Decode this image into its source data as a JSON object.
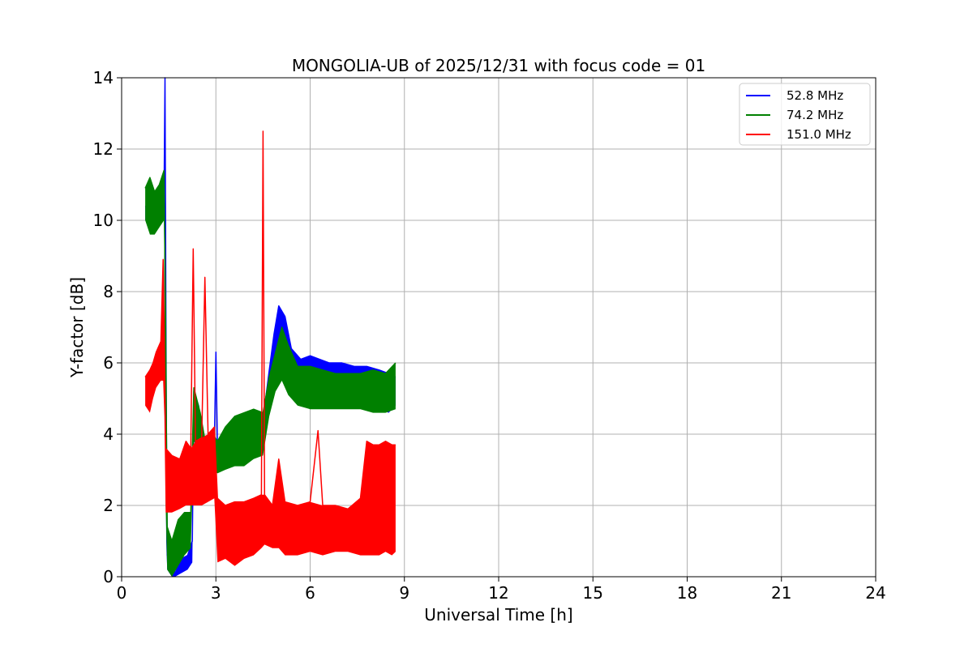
{
  "chart_data": {
    "type": "line",
    "title": "MONGOLIA-UB of 2025/12/31 with focus code = 01",
    "xlabel": "Universal Time [h]",
    "ylabel": "Y-factor [dB]",
    "xlim": [
      0,
      24
    ],
    "ylim": [
      0,
      14
    ],
    "xticks": [
      "0",
      "3",
      "6",
      "9",
      "12",
      "15",
      "18",
      "21",
      "24"
    ],
    "yticks": [
      "0",
      "2",
      "4",
      "6",
      "8",
      "10",
      "12",
      "14"
    ],
    "grid": true,
    "legend_position": "top-right",
    "series": [
      {
        "name": " 52.8 MHz",
        "color": "#0000ff",
        "points": [
          [
            0.75,
            10.4
          ],
          [
            1.0,
            10.3
          ],
          [
            1.2,
            10.5
          ],
          [
            1.35,
            10.6
          ],
          [
            1.38,
            14.0
          ],
          [
            1.42,
            5.0
          ],
          [
            1.45,
            0.6
          ],
          [
            1.6,
            0.4
          ],
          [
            1.7,
            0.1
          ],
          [
            1.9,
            0.5
          ],
          [
            2.1,
            0.6
          ],
          [
            2.25,
            1.0
          ],
          [
            2.3,
            5.2
          ],
          [
            2.45,
            4.8
          ],
          [
            2.6,
            3.4
          ],
          [
            2.8,
            4.0
          ],
          [
            2.95,
            3.6
          ],
          [
            3.0,
            6.3
          ],
          [
            3.05,
            3.6
          ],
          [
            3.3,
            3.8
          ],
          [
            3.6,
            4.0
          ],
          [
            3.9,
            4.2
          ],
          [
            4.2,
            4.3
          ],
          [
            4.5,
            4.4
          ],
          [
            4.7,
            5.8
          ],
          [
            4.85,
            6.8
          ],
          [
            5.0,
            7.6
          ],
          [
            5.2,
            7.3
          ],
          [
            5.4,
            6.4
          ],
          [
            5.7,
            6.1
          ],
          [
            6.0,
            6.2
          ],
          [
            6.3,
            6.1
          ],
          [
            6.6,
            6.0
          ],
          [
            7.0,
            6.0
          ],
          [
            7.4,
            5.9
          ],
          [
            7.8,
            5.9
          ],
          [
            8.2,
            5.8
          ],
          [
            8.5,
            5.7
          ],
          [
            8.72,
            5.6
          ]
        ],
        "envelope_lower": [
          [
            0.75,
            10.0
          ],
          [
            1.0,
            9.8
          ],
          [
            1.2,
            10.0
          ],
          [
            1.35,
            10.1
          ],
          [
            1.42,
            1.0
          ],
          [
            1.45,
            0.2
          ],
          [
            1.6,
            0.0
          ],
          [
            1.7,
            0.0
          ],
          [
            1.9,
            0.1
          ],
          [
            2.1,
            0.2
          ],
          [
            2.25,
            0.4
          ],
          [
            2.3,
            3.8
          ],
          [
            2.45,
            3.5
          ],
          [
            2.6,
            2.6
          ],
          [
            2.8,
            3.0
          ],
          [
            2.95,
            2.9
          ],
          [
            3.05,
            3.1
          ],
          [
            3.3,
            3.2
          ],
          [
            3.6,
            3.3
          ],
          [
            3.9,
            3.5
          ],
          [
            4.2,
            3.7
          ],
          [
            4.5,
            3.8
          ],
          [
            4.7,
            4.8
          ],
          [
            4.85,
            5.6
          ],
          [
            5.0,
            6.0
          ],
          [
            5.2,
            5.8
          ],
          [
            5.4,
            5.2
          ],
          [
            5.7,
            4.9
          ],
          [
            6.0,
            4.9
          ],
          [
            6.3,
            4.9
          ],
          [
            6.6,
            4.8
          ],
          [
            7.0,
            4.8
          ],
          [
            7.4,
            4.8
          ],
          [
            7.8,
            4.7
          ],
          [
            8.2,
            4.7
          ],
          [
            8.5,
            4.6
          ],
          [
            8.72,
            4.8
          ]
        ]
      },
      {
        "name": " 74.2 MHz",
        "color": "#008000",
        "points": [
          [
            0.75,
            10.9
          ],
          [
            0.9,
            11.2
          ],
          [
            1.05,
            10.8
          ],
          [
            1.2,
            11.0
          ],
          [
            1.35,
            11.4
          ],
          [
            1.4,
            7.0
          ],
          [
            1.45,
            1.4
          ],
          [
            1.6,
            1.0
          ],
          [
            1.8,
            1.6
          ],
          [
            2.0,
            1.8
          ],
          [
            2.2,
            1.8
          ],
          [
            2.3,
            5.3
          ],
          [
            2.5,
            4.6
          ],
          [
            2.7,
            3.6
          ],
          [
            2.9,
            4.0
          ],
          [
            3.05,
            3.8
          ],
          [
            3.3,
            4.2
          ],
          [
            3.6,
            4.5
          ],
          [
            3.9,
            4.6
          ],
          [
            4.2,
            4.7
          ],
          [
            4.5,
            4.6
          ],
          [
            4.7,
            5.6
          ],
          [
            4.9,
            6.3
          ],
          [
            5.1,
            7.0
          ],
          [
            5.3,
            6.5
          ],
          [
            5.6,
            5.9
          ],
          [
            6.0,
            5.9
          ],
          [
            6.4,
            5.8
          ],
          [
            6.8,
            5.7
          ],
          [
            7.2,
            5.7
          ],
          [
            7.6,
            5.7
          ],
          [
            8.0,
            5.8
          ],
          [
            8.4,
            5.7
          ],
          [
            8.72,
            6.0
          ]
        ],
        "envelope_lower": [
          [
            0.75,
            10.0
          ],
          [
            0.9,
            9.6
          ],
          [
            1.05,
            9.6
          ],
          [
            1.2,
            9.8
          ],
          [
            1.35,
            10.0
          ],
          [
            1.4,
            2.0
          ],
          [
            1.45,
            0.2
          ],
          [
            1.6,
            0.0
          ],
          [
            1.8,
            0.3
          ],
          [
            2.0,
            0.6
          ],
          [
            2.2,
            0.8
          ],
          [
            2.3,
            3.8
          ],
          [
            2.5,
            3.4
          ],
          [
            2.7,
            2.8
          ],
          [
            2.9,
            3.0
          ],
          [
            3.05,
            2.9
          ],
          [
            3.3,
            3.0
          ],
          [
            3.6,
            3.1
          ],
          [
            3.9,
            3.1
          ],
          [
            4.2,
            3.3
          ],
          [
            4.5,
            3.4
          ],
          [
            4.7,
            4.5
          ],
          [
            4.9,
            5.2
          ],
          [
            5.1,
            5.5
          ],
          [
            5.3,
            5.1
          ],
          [
            5.6,
            4.8
          ],
          [
            6.0,
            4.7
          ],
          [
            6.4,
            4.7
          ],
          [
            6.8,
            4.7
          ],
          [
            7.2,
            4.7
          ],
          [
            7.6,
            4.7
          ],
          [
            8.0,
            4.6
          ],
          [
            8.4,
            4.6
          ],
          [
            8.72,
            4.7
          ]
        ]
      },
      {
        "name": "151.0 MHz",
        "color": "#ff0000",
        "points": [
          [
            0.75,
            5.6
          ],
          [
            0.9,
            5.8
          ],
          [
            1.0,
            6.0
          ],
          [
            1.1,
            6.3
          ],
          [
            1.25,
            6.6
          ],
          [
            1.32,
            8.9
          ],
          [
            1.36,
            6.5
          ],
          [
            1.4,
            3.6
          ],
          [
            1.6,
            3.4
          ],
          [
            1.85,
            3.3
          ],
          [
            2.05,
            3.8
          ],
          [
            2.2,
            3.6
          ],
          [
            2.28,
            9.2
          ],
          [
            2.35,
            3.8
          ],
          [
            2.55,
            3.9
          ],
          [
            2.65,
            8.4
          ],
          [
            2.75,
            4.0
          ],
          [
            2.95,
            4.2
          ],
          [
            3.05,
            2.2
          ],
          [
            3.3,
            2.0
          ],
          [
            3.6,
            2.1
          ],
          [
            3.9,
            2.1
          ],
          [
            4.2,
            2.2
          ],
          [
            4.45,
            2.3
          ],
          [
            4.5,
            12.5
          ],
          [
            4.55,
            2.3
          ],
          [
            4.8,
            2.0
          ],
          [
            5.0,
            3.3
          ],
          [
            5.2,
            2.1
          ],
          [
            5.6,
            2.0
          ],
          [
            6.0,
            2.1
          ],
          [
            6.25,
            4.1
          ],
          [
            6.4,
            2.0
          ],
          [
            6.8,
            2.0
          ],
          [
            7.2,
            1.9
          ],
          [
            7.6,
            2.2
          ],
          [
            7.8,
            3.8
          ],
          [
            8.0,
            3.7
          ],
          [
            8.2,
            3.7
          ],
          [
            8.4,
            3.8
          ],
          [
            8.6,
            3.7
          ],
          [
            8.72,
            3.7
          ]
        ],
        "envelope_lower": [
          [
            0.75,
            4.8
          ],
          [
            0.9,
            4.6
          ],
          [
            1.0,
            5.0
          ],
          [
            1.1,
            5.3
          ],
          [
            1.25,
            5.5
          ],
          [
            1.32,
            5.5
          ],
          [
            1.36,
            4.5
          ],
          [
            1.4,
            1.8
          ],
          [
            1.6,
            1.8
          ],
          [
            1.85,
            1.9
          ],
          [
            2.05,
            2.0
          ],
          [
            2.2,
            2.0
          ],
          [
            2.35,
            2.0
          ],
          [
            2.55,
            2.0
          ],
          [
            2.75,
            2.1
          ],
          [
            2.95,
            2.2
          ],
          [
            3.05,
            0.4
          ],
          [
            3.3,
            0.5
          ],
          [
            3.6,
            0.3
          ],
          [
            3.9,
            0.5
          ],
          [
            4.2,
            0.6
          ],
          [
            4.45,
            0.8
          ],
          [
            4.55,
            0.9
          ],
          [
            4.8,
            0.8
          ],
          [
            5.0,
            0.8
          ],
          [
            5.2,
            0.6
          ],
          [
            5.6,
            0.6
          ],
          [
            6.0,
            0.7
          ],
          [
            6.4,
            0.6
          ],
          [
            6.8,
            0.7
          ],
          [
            7.2,
            0.7
          ],
          [
            7.6,
            0.6
          ],
          [
            7.8,
            0.6
          ],
          [
            8.0,
            0.6
          ],
          [
            8.2,
            0.6
          ],
          [
            8.4,
            0.7
          ],
          [
            8.6,
            0.6
          ],
          [
            8.72,
            0.7
          ]
        ]
      }
    ]
  }
}
